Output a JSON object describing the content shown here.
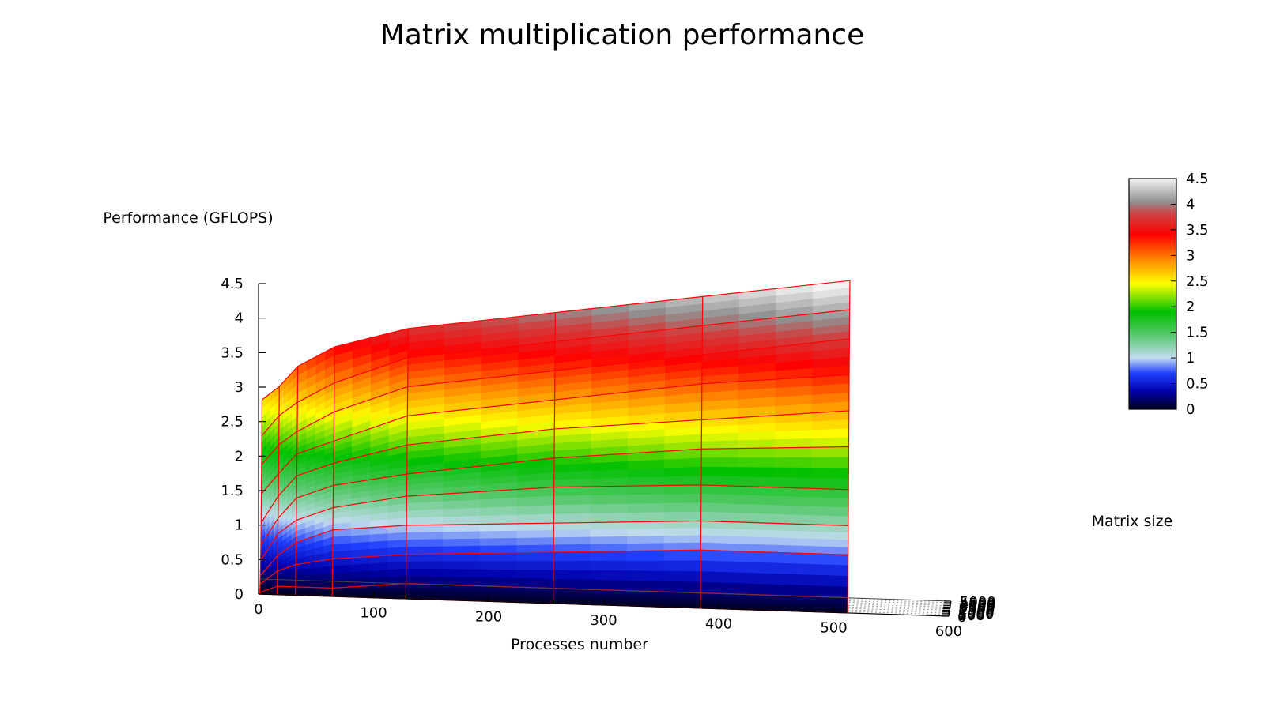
{
  "chart_data": {
    "type": "surface",
    "title": "Matrix multiplication performance",
    "xlabel": "Processes number",
    "ylabel": "Matrix size",
    "zlabel": "Performance (GFLOPS)",
    "x_ticks": [
      "0",
      "100",
      "200",
      "300",
      "400",
      "500",
      "600"
    ],
    "y_ticks": [
      "0",
      "500",
      "1000",
      "1500",
      "2000",
      "2500",
      "3000",
      "3500",
      "4000",
      "4500",
      "5000"
    ],
    "z_ticks": [
      "0",
      "0.5",
      "1",
      "1.5",
      "2",
      "2.5",
      "3",
      "3.5",
      "4",
      "4.5"
    ],
    "xlim": [
      0,
      600
    ],
    "ylim": [
      0,
      5000
    ],
    "zlim": [
      0,
      4.5
    ],
    "colorbar": {
      "ticks": [
        "0",
        "0.5",
        "1",
        "1.5",
        "2",
        "2.5",
        "3",
        "3.5",
        "4",
        "4.5"
      ],
      "range": [
        0,
        4.5
      ],
      "stops": [
        {
          "value": 0,
          "color": "#000020"
        },
        {
          "value": 0.35,
          "color": "#0000aa"
        },
        {
          "value": 0.7,
          "color": "#1f3fff"
        },
        {
          "value": 1.0,
          "color": "#c2dcf0"
        },
        {
          "value": 1.45,
          "color": "#55c86a"
        },
        {
          "value": 1.9,
          "color": "#00c000"
        },
        {
          "value": 2.45,
          "color": "#ffff00"
        },
        {
          "value": 2.95,
          "color": "#ff8000"
        },
        {
          "value": 3.4,
          "color": "#ff0000"
        },
        {
          "value": 3.8,
          "color": "#d04040"
        },
        {
          "value": 4.05,
          "color": "#909090"
        },
        {
          "value": 4.5,
          "color": "#f4f4f4"
        }
      ]
    },
    "mesh_color": "#ff0000",
    "processes": [
      1,
      16,
      32,
      64,
      128,
      256,
      384,
      512
    ],
    "matrix_sizes": [
      0,
      500,
      1000,
      1500,
      2000,
      2500,
      3000,
      3500,
      4000,
      4500,
      5000
    ],
    "performance": [
      [
        0.0,
        0.0,
        0.0,
        0.0,
        0.0,
        0.0,
        0.0,
        0.0
      ],
      [
        0.0,
        0.1,
        0.1,
        0.1,
        0.2,
        0.2,
        0.2,
        0.2
      ],
      [
        0.1,
        0.3,
        0.4,
        0.5,
        0.6,
        0.7,
        0.8,
        0.8
      ],
      [
        0.2,
        0.5,
        0.7,
        0.9,
        1.0,
        1.1,
        1.2,
        1.2
      ],
      [
        0.4,
        0.8,
        1.0,
        1.2,
        1.4,
        1.6,
        1.7,
        1.7
      ],
      [
        0.6,
        1.0,
        1.3,
        1.5,
        1.7,
        2.0,
        2.2,
        2.3
      ],
      [
        0.9,
        1.3,
        1.6,
        1.8,
        2.1,
        2.4,
        2.6,
        2.8
      ],
      [
        1.3,
        1.6,
        1.9,
        2.1,
        2.5,
        2.8,
        3.1,
        3.3
      ],
      [
        1.7,
        2.0,
        2.2,
        2.5,
        2.9,
        3.2,
        3.5,
        3.8
      ],
      [
        2.1,
        2.4,
        2.6,
        2.9,
        3.3,
        3.6,
        3.9,
        4.2
      ],
      [
        2.6,
        2.8,
        3.1,
        3.4,
        3.7,
        4.0,
        4.3,
        4.6
      ]
    ]
  }
}
